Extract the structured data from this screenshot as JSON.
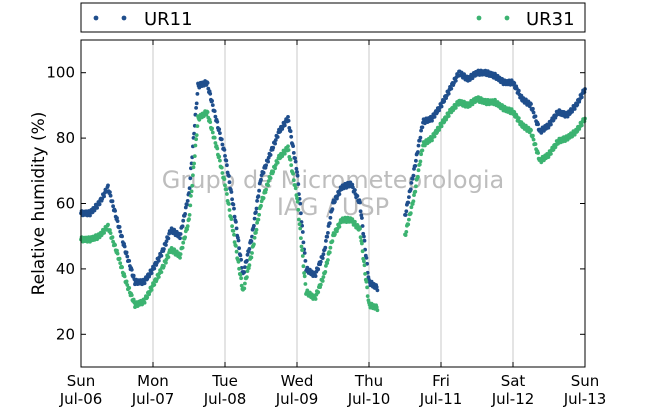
{
  "chart_data": {
    "type": "scatter",
    "ylabel": "Relative humidity (%)",
    "ylim": [
      10,
      110
    ],
    "y_ticks": [
      20,
      40,
      60,
      80,
      100
    ],
    "xlim": [
      "2014-07-06 00:00",
      "2014-07-13 00:00"
    ],
    "x_ticks": [
      {
        "day": "Sun",
        "date": "Jul-06"
      },
      {
        "day": "Mon",
        "date": "Jul-07"
      },
      {
        "day": "Tue",
        "date": "Jul-08"
      },
      {
        "day": "Wed",
        "date": "Jul-09"
      },
      {
        "day": "Thu",
        "date": "Jul-10"
      },
      {
        "day": "Fri",
        "date": "Jul-11"
      },
      {
        "day": "Sat",
        "date": "Jul-12"
      },
      {
        "day": "Sun",
        "date": "Jul-13"
      }
    ],
    "grid": "vertical",
    "legend": "top",
    "watermark": [
      "Grupo de Micrometeorologia",
      "IAG / USP"
    ],
    "series": [
      {
        "name": "UR11",
        "color": "#1f4e8c",
        "x": [
          "2014-07-06 00:00",
          "2014-07-06 03:00",
          "2014-07-06 06:00",
          "2014-07-06 09:00",
          "2014-07-06 12:00",
          "2014-07-06 15:00",
          "2014-07-06 18:00",
          "2014-07-06 21:00",
          "2014-07-07 00:00",
          "2014-07-07 03:00",
          "2014-07-07 06:00",
          "2014-07-07 09:00",
          "2014-07-07 12:00",
          "2014-07-07 15:00",
          "2014-07-07 18:00",
          "2014-07-07 21:00",
          "2014-07-08 00:00",
          "2014-07-08 03:00",
          "2014-07-08 06:00",
          "2014-07-08 09:00",
          "2014-07-08 12:00",
          "2014-07-08 15:00",
          "2014-07-08 18:00",
          "2014-07-08 21:00",
          "2014-07-09 00:00",
          "2014-07-09 03:00",
          "2014-07-09 06:00",
          "2014-07-09 09:00",
          "2014-07-09 12:00",
          "2014-07-09 15:00",
          "2014-07-09 18:00",
          "2014-07-09 21:00",
          "2014-07-10 00:00",
          "2014-07-10 03:00",
          "2014-07-10 06:00",
          "2014-07-10 09:00",
          "2014-07-10 12:00",
          "2014-07-10 15:00",
          "2014-07-10 18:00",
          "2014-07-10 21:00",
          "2014-07-11 00:00",
          "2014-07-11 03:00",
          "2014-07-11 06:00",
          "2014-07-11 09:00",
          "2014-07-11 12:00",
          "2014-07-11 15:00",
          "2014-07-11 18:00",
          "2014-07-11 21:00",
          "2014-07-12 00:00",
          "2014-07-12 03:00",
          "2014-07-12 06:00",
          "2014-07-12 09:00",
          "2014-07-12 12:00",
          "2014-07-12 15:00",
          "2014-07-12 18:00",
          "2014-07-12 21:00",
          "2014-07-13 00:00"
        ],
        "values": [
          57,
          57,
          60,
          65,
          55,
          45,
          36,
          36,
          40,
          45,
          52,
          50,
          63,
          96,
          97,
          86,
          75,
          58,
          38,
          50,
          68,
          75,
          82,
          86,
          70,
          40,
          38,
          45,
          60,
          65,
          66,
          60,
          36,
          34,
          null,
          null,
          56,
          70,
          85,
          86,
          90,
          95,
          100,
          98,
          100,
          100,
          99,
          97,
          97,
          92,
          90,
          82,
          84,
          88,
          87,
          90,
          95
        ]
      },
      {
        "name": "UR31",
        "color": "#3cb371",
        "x": [
          "2014-07-06 00:00",
          "2014-07-06 03:00",
          "2014-07-06 06:00",
          "2014-07-06 09:00",
          "2014-07-06 12:00",
          "2014-07-06 15:00",
          "2014-07-06 18:00",
          "2014-07-06 21:00",
          "2014-07-07 00:00",
          "2014-07-07 03:00",
          "2014-07-07 06:00",
          "2014-07-07 09:00",
          "2014-07-07 12:00",
          "2014-07-07 15:00",
          "2014-07-07 18:00",
          "2014-07-07 21:00",
          "2014-07-08 00:00",
          "2014-07-08 03:00",
          "2014-07-08 06:00",
          "2014-07-08 09:00",
          "2014-07-08 12:00",
          "2014-07-08 15:00",
          "2014-07-08 18:00",
          "2014-07-08 21:00",
          "2014-07-09 00:00",
          "2014-07-09 03:00",
          "2014-07-09 06:00",
          "2014-07-09 09:00",
          "2014-07-09 12:00",
          "2014-07-09 15:00",
          "2014-07-09 18:00",
          "2014-07-09 21:00",
          "2014-07-10 00:00",
          "2014-07-10 03:00",
          "2014-07-10 06:00",
          "2014-07-10 09:00",
          "2014-07-10 12:00",
          "2014-07-10 15:00",
          "2014-07-10 18:00",
          "2014-07-10 21:00",
          "2014-07-11 00:00",
          "2014-07-11 03:00",
          "2014-07-11 06:00",
          "2014-07-11 09:00",
          "2014-07-11 12:00",
          "2014-07-11 15:00",
          "2014-07-11 18:00",
          "2014-07-11 21:00",
          "2014-07-12 00:00",
          "2014-07-12 03:00",
          "2014-07-12 06:00",
          "2014-07-12 09:00",
          "2014-07-12 12:00",
          "2014-07-12 15:00",
          "2014-07-12 18:00",
          "2014-07-12 21:00",
          "2014-07-13 00:00"
        ],
        "values": [
          49,
          49,
          50,
          53,
          45,
          36,
          29,
          30,
          35,
          40,
          46,
          44,
          55,
          86,
          88,
          78,
          66,
          50,
          33,
          45,
          60,
          68,
          74,
          77,
          62,
          33,
          31,
          38,
          50,
          55,
          55,
          52,
          29,
          28,
          null,
          null,
          50,
          62,
          78,
          80,
          84,
          88,
          91,
          90,
          92,
          91,
          91,
          89,
          88,
          84,
          82,
          73,
          75,
          79,
          80,
          82,
          86
        ]
      }
    ]
  }
}
